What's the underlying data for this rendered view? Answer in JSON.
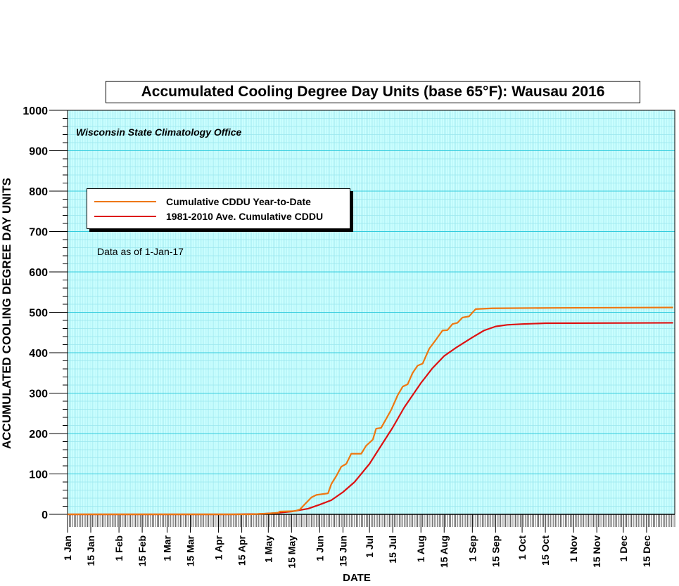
{
  "chart_data": {
    "type": "line",
    "title": "Accumulated Cooling Degree Day Units (base 65°F): Wausau 2016",
    "subtitle": "Wisconsin State Climatology Office",
    "annotation": "Data as of 1-Jan-17",
    "xlabel": "DATE",
    "ylabel": "ACCUMULATED COOLING DEGREE DAY UNITS",
    "ylim": [
      0,
      1000
    ],
    "yticks": [
      0,
      100,
      200,
      300,
      400,
      500,
      600,
      700,
      800,
      900,
      1000
    ],
    "xlim": [
      "2016-01-01",
      "2016-12-31"
    ],
    "xticks": [
      {
        "date": "2016-01-01",
        "label": "1 Jan"
      },
      {
        "date": "2016-01-15",
        "label": "15 Jan"
      },
      {
        "date": "2016-02-01",
        "label": "1 Feb"
      },
      {
        "date": "2016-02-15",
        "label": "15 Feb"
      },
      {
        "date": "2016-03-01",
        "label": "1 Mar"
      },
      {
        "date": "2016-03-15",
        "label": "15 Mar"
      },
      {
        "date": "2016-04-01",
        "label": "1 Apr"
      },
      {
        "date": "2016-04-15",
        "label": "15 Apr"
      },
      {
        "date": "2016-05-01",
        "label": "1 May"
      },
      {
        "date": "2016-05-15",
        "label": "15 May"
      },
      {
        "date": "2016-06-01",
        "label": "1 Jun"
      },
      {
        "date": "2016-06-15",
        "label": "15 Jun"
      },
      {
        "date": "2016-07-01",
        "label": "1 Jul"
      },
      {
        "date": "2016-07-15",
        "label": "15 Jul"
      },
      {
        "date": "2016-08-01",
        "label": "1 Aug"
      },
      {
        "date": "2016-08-15",
        "label": "15 Aug"
      },
      {
        "date": "2016-09-01",
        "label": "1 Sep"
      },
      {
        "date": "2016-09-15",
        "label": "15 Sep"
      },
      {
        "date": "2016-10-01",
        "label": "1 Oct"
      },
      {
        "date": "2016-10-15",
        "label": "15 Oct"
      },
      {
        "date": "2016-11-01",
        "label": "1 Nov"
      },
      {
        "date": "2016-11-15",
        "label": "15 Nov"
      },
      {
        "date": "2016-12-01",
        "label": "1 Dec"
      },
      {
        "date": "2016-12-15",
        "label": "15 Dec"
      }
    ],
    "grid": true,
    "legend_position": "upper-left",
    "background_color": "#ccffff",
    "grid_major_color": "#33ccdd",
    "grid_minor_color": "#99e6ee",
    "series": [
      {
        "name": "Cumulative CDDU Year-to-Date",
        "color": "#ee7711",
        "points": [
          [
            "2016-01-01",
            0
          ],
          [
            "2016-04-20",
            0
          ],
          [
            "2016-05-01",
            2
          ],
          [
            "2016-05-07",
            4
          ],
          [
            "2016-05-08",
            7
          ],
          [
            "2016-05-17",
            8
          ],
          [
            "2016-05-20",
            12
          ],
          [
            "2016-05-23",
            25
          ],
          [
            "2016-05-27",
            42
          ],
          [
            "2016-05-30",
            48
          ],
          [
            "2016-06-06",
            52
          ],
          [
            "2016-06-08",
            75
          ],
          [
            "2016-06-11",
            95
          ],
          [
            "2016-06-14",
            118
          ],
          [
            "2016-06-17",
            125
          ],
          [
            "2016-06-20",
            150
          ],
          [
            "2016-06-26",
            150
          ],
          [
            "2016-06-29",
            170
          ],
          [
            "2016-07-03",
            185
          ],
          [
            "2016-07-05",
            212
          ],
          [
            "2016-07-08",
            214
          ],
          [
            "2016-07-14",
            258
          ],
          [
            "2016-07-18",
            295
          ],
          [
            "2016-07-21",
            316
          ],
          [
            "2016-07-24",
            322
          ],
          [
            "2016-07-27",
            350
          ],
          [
            "2016-07-30",
            368
          ],
          [
            "2016-08-02",
            373
          ],
          [
            "2016-08-06",
            410
          ],
          [
            "2016-08-10",
            432
          ],
          [
            "2016-08-14",
            455
          ],
          [
            "2016-08-17",
            456
          ],
          [
            "2016-08-20",
            471
          ],
          [
            "2016-08-23",
            474
          ],
          [
            "2016-08-26",
            487
          ],
          [
            "2016-08-30",
            490
          ],
          [
            "2016-09-03",
            508
          ],
          [
            "2016-09-13",
            510
          ],
          [
            "2016-10-20",
            511
          ],
          [
            "2016-12-31",
            512
          ]
        ]
      },
      {
        "name": "1981-2010 Ave. Cumulative CDDU",
        "color": "#dd1111",
        "points": [
          [
            "2016-01-01",
            0
          ],
          [
            "2016-04-10",
            0
          ],
          [
            "2016-04-25",
            1
          ],
          [
            "2016-05-05",
            3
          ],
          [
            "2016-05-15",
            7
          ],
          [
            "2016-05-25",
            14
          ],
          [
            "2016-06-01",
            24
          ],
          [
            "2016-06-08",
            35
          ],
          [
            "2016-06-15",
            55
          ],
          [
            "2016-06-22",
            80
          ],
          [
            "2016-07-01",
            125
          ],
          [
            "2016-07-08",
            170
          ],
          [
            "2016-07-15",
            215
          ],
          [
            "2016-07-22",
            265
          ],
          [
            "2016-08-01",
            325
          ],
          [
            "2016-08-08",
            362
          ],
          [
            "2016-08-15",
            392
          ],
          [
            "2016-08-22",
            412
          ],
          [
            "2016-09-01",
            438
          ],
          [
            "2016-09-08",
            455
          ],
          [
            "2016-09-15",
            465
          ],
          [
            "2016-09-22",
            469
          ],
          [
            "2016-10-01",
            471
          ],
          [
            "2016-10-15",
            473
          ],
          [
            "2016-12-31",
            474
          ]
        ]
      }
    ]
  }
}
